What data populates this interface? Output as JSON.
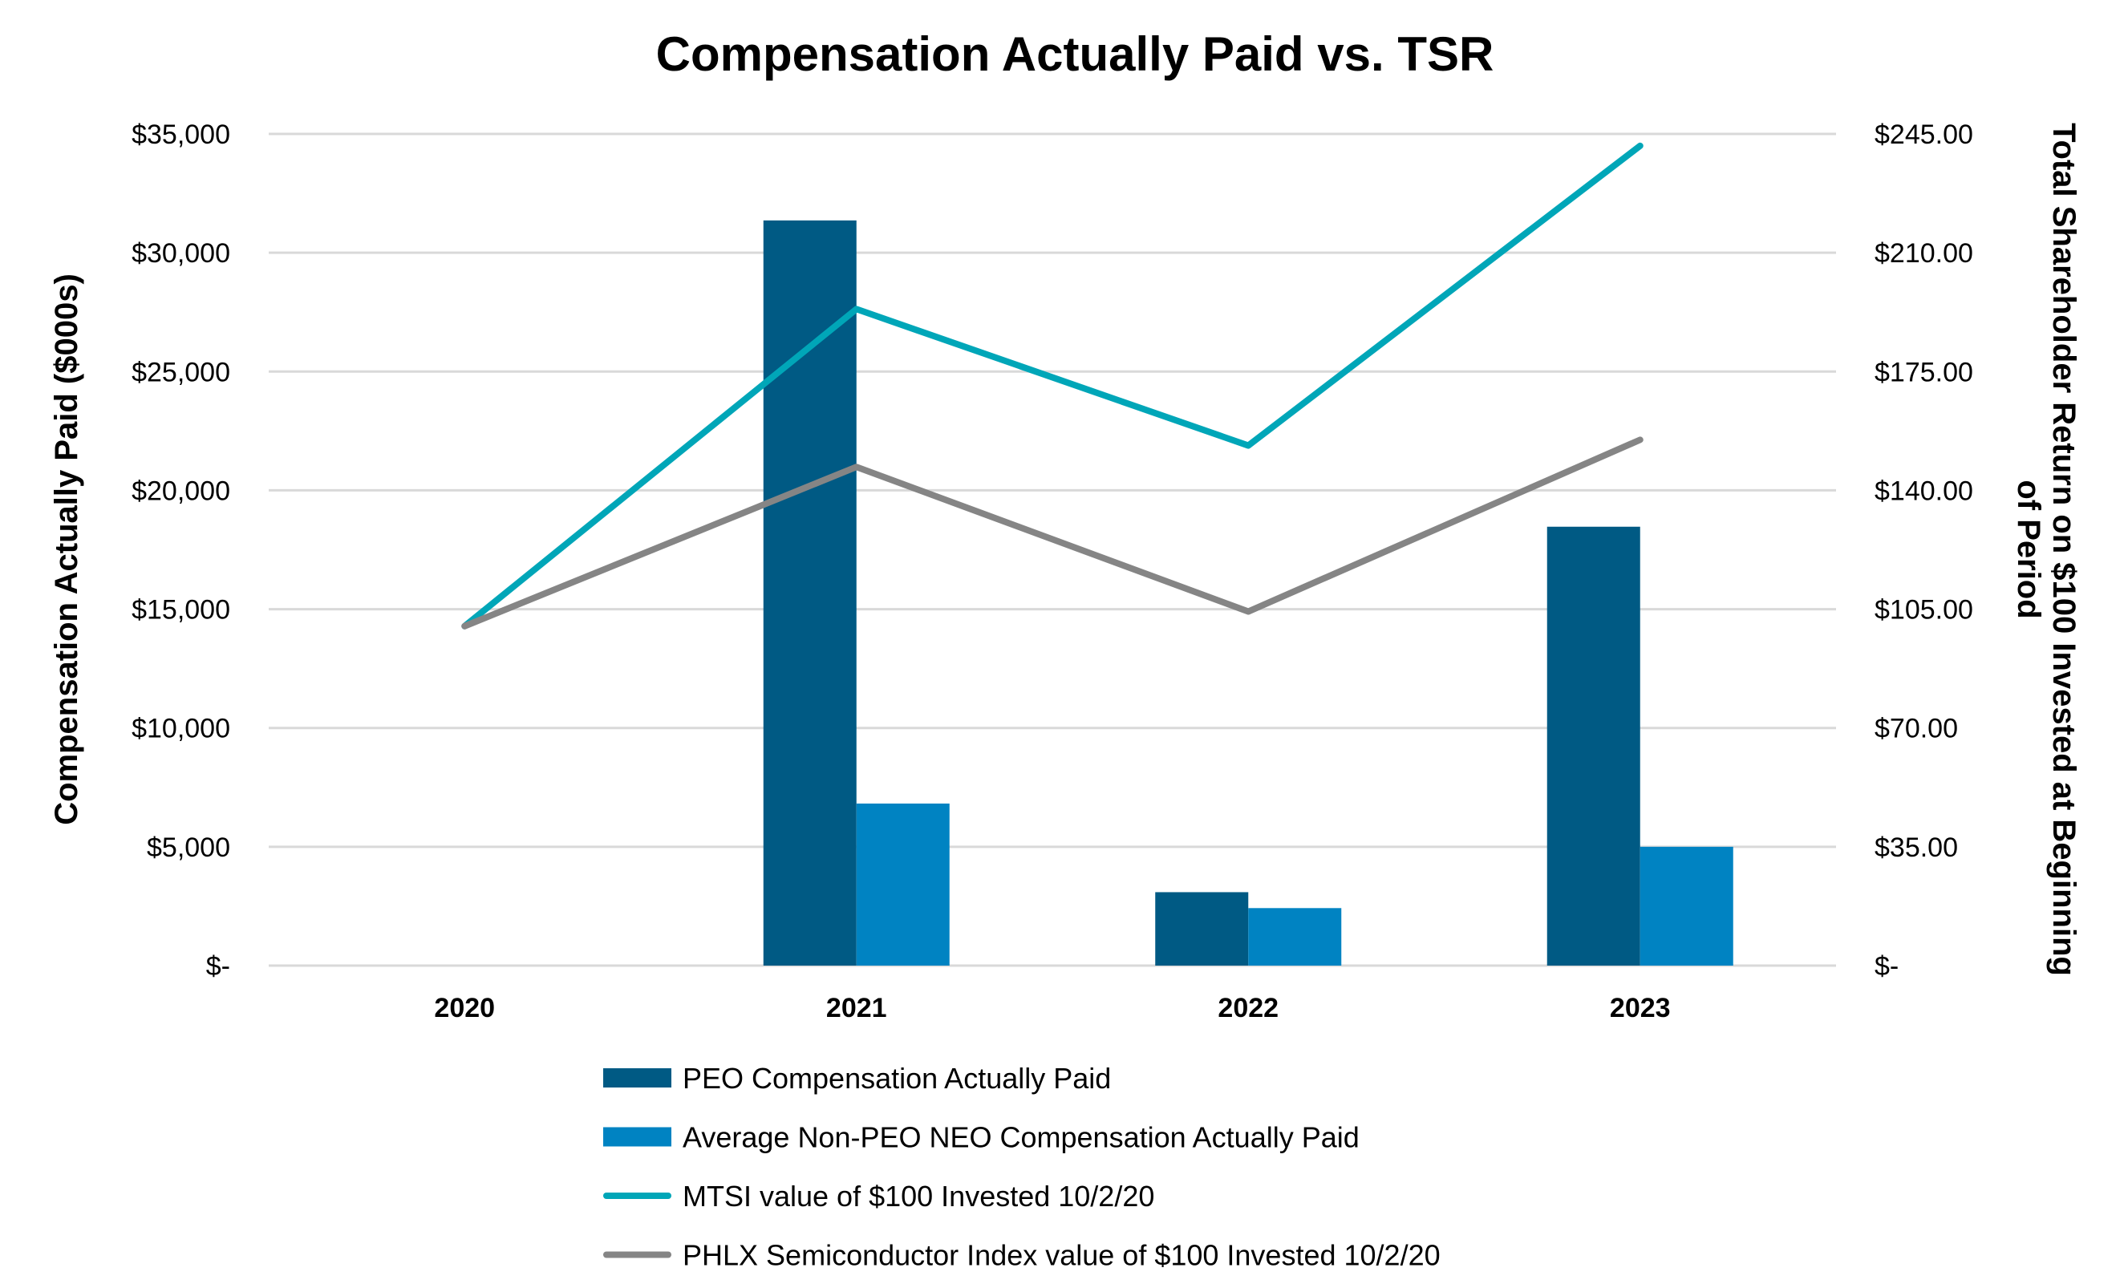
{
  "chart_data": {
    "type": "bar+line",
    "title": "Compensation Actually Paid vs. TSR",
    "categories": [
      "2020",
      "2021",
      "2022",
      "2023"
    ],
    "y_left": {
      "label": "Compensation Actually Paid ($000s)",
      "range": [
        0,
        35000
      ],
      "ticks": [
        "$-",
        "$5,000",
        "$10,000",
        "$15,000",
        "$20,000",
        "$25,000",
        "$30,000",
        "$35,000"
      ]
    },
    "y_right": {
      "label_lines": [
        "Total Shareholder Return on $100 Invested at Beginning",
        "of Period"
      ],
      "range": [
        0,
        245
      ],
      "ticks": [
        "$-",
        "$35.00",
        "$70.00",
        "$105.00",
        "$140.00",
        "$175.00",
        "$210.00",
        "$245.00"
      ]
    },
    "grid": true,
    "legend_position": "bottom",
    "bar_series": [
      {
        "name": "PEO Compensation Actually Paid",
        "color": "#005A84",
        "values": [
          null,
          31360,
          3090,
          18470
        ]
      },
      {
        "name": "Average Non-PEO NEO Compensation Actually Paid",
        "color": "#0083C2",
        "values": [
          null,
          6820,
          2420,
          5000
        ]
      }
    ],
    "line_series": [
      {
        "name": "MTSI value of $100 Invested 10/2/20",
        "color": "#00A6B8",
        "values": [
          100,
          193.4,
          153.2,
          241.5
        ]
      },
      {
        "name": "PHLX Semiconductor Index value of $100 Invested 10/2/20",
        "color": "#858585",
        "values": [
          100,
          146.9,
          104.3,
          154.9
        ]
      }
    ]
  }
}
